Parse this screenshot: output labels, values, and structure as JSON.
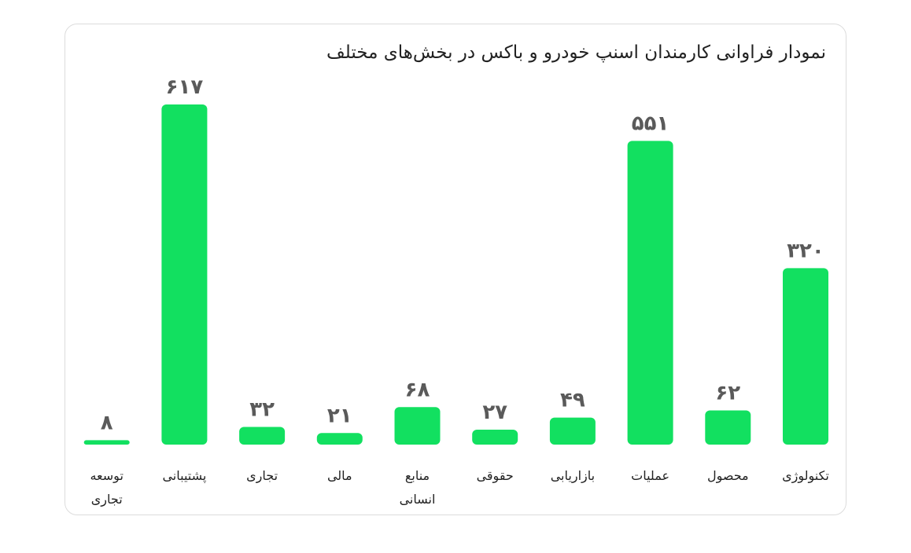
{
  "chart_data": {
    "type": "bar",
    "title": "نمودار فراوانی کارمندان اسنپ خودرو و باکس در بخش‌های مختلف",
    "categories": [
      "تکنولوژی",
      "محصول",
      "عملیات",
      "بازاریابی",
      "حقوقی",
      "منابع انسانی",
      "مالی",
      "تجاری",
      "پشتیبانی",
      "توسعه تجاری"
    ],
    "values": [
      320,
      62,
      551,
      49,
      27,
      68,
      21,
      32,
      617,
      8
    ],
    "value_labels": [
      "۳۲۰",
      "۶۲",
      "۵۵۱",
      "۴۹",
      "۲۷",
      "۶۸",
      "۲۱",
      "۳۲",
      "۶۱۷",
      "۸"
    ],
    "color": "#12e060"
  }
}
